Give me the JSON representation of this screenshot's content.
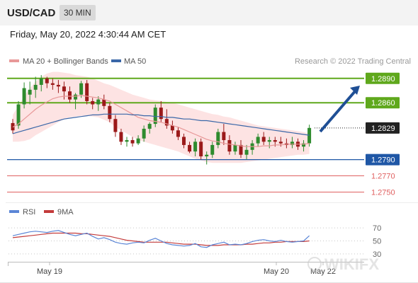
{
  "header": {
    "symbol": "USD/CAD",
    "timeframe": "30 MIN",
    "datetime": "Friday, May 20, 2022 4:30:44 AM CET"
  },
  "legend": {
    "ma20_bb": "MA 20 + Bollinger Bands",
    "ma50": "MA 50",
    "credit": "Research © 2022 Trading Central",
    "rsi": "RSI",
    "ma9": "9MA"
  },
  "watermark": "WIKIFX",
  "colors": {
    "up": "#2e8b2e",
    "down": "#9b1a1a",
    "resistance": "#5fa81c",
    "support": "#1f57a6",
    "minor_support": "#e06060",
    "bollinger_fill": "#fde3e3",
    "ma20": "#e89898",
    "ma50": "#3a67a8",
    "rsi": "#5b86d6",
    "rsi_ma": "#c33b3b",
    "arrow": "#1f4f95"
  },
  "chart_data": [
    {
      "type": "candlestick",
      "x_labels": [
        "May 19",
        "May 20",
        "May 22"
      ],
      "ylim": [
        1.274,
        1.2902
      ],
      "levels": [
        {
          "value": 1.289,
          "label": "1.2890",
          "kind": "resistance"
        },
        {
          "value": 1.286,
          "label": "1.2860",
          "kind": "resistance"
        },
        {
          "value": 1.2829,
          "label": "1.2829",
          "kind": "last"
        },
        {
          "value": 1.279,
          "label": "1.2790",
          "kind": "support"
        },
        {
          "value": 1.277,
          "label": "1.2770",
          "kind": "minor"
        },
        {
          "value": 1.275,
          "label": "1.2750",
          "kind": "minor"
        }
      ],
      "ohlc": [
        [
          1.2835,
          1.284,
          1.2822,
          1.2826
        ],
        [
          1.2832,
          1.2862,
          1.2828,
          1.2858
        ],
        [
          1.2858,
          1.2885,
          1.2853,
          1.2878
        ],
        [
          1.287,
          1.2886,
          1.2858,
          1.2876
        ],
        [
          1.2876,
          1.2892,
          1.2866,
          1.2882
        ],
        [
          1.2882,
          1.2894,
          1.2874,
          1.289
        ],
        [
          1.289,
          1.2892,
          1.2878,
          1.2884
        ],
        [
          1.2884,
          1.289,
          1.2876,
          1.2882
        ],
        [
          1.2882,
          1.2888,
          1.2872,
          1.288
        ],
        [
          1.288,
          1.2886,
          1.2864,
          1.2874
        ],
        [
          1.2874,
          1.288,
          1.286,
          1.2864
        ],
        [
          1.2864,
          1.2872,
          1.2852,
          1.287
        ],
        [
          1.287,
          1.2887,
          1.2866,
          1.2884
        ],
        [
          1.2884,
          1.2888,
          1.2858,
          1.2862
        ],
        [
          1.2862,
          1.2866,
          1.2852,
          1.2858
        ],
        [
          1.2858,
          1.2868,
          1.285,
          1.2864
        ],
        [
          1.2864,
          1.287,
          1.2852,
          1.2856
        ],
        [
          1.2856,
          1.286,
          1.2836,
          1.284
        ],
        [
          1.284,
          1.2845,
          1.2818,
          1.2824
        ],
        [
          1.2824,
          1.2828,
          1.2808,
          1.2812
        ],
        [
          1.2812,
          1.2818,
          1.2806,
          1.2814
        ],
        [
          1.2814,
          1.2818,
          1.2806,
          1.281
        ],
        [
          1.281,
          1.282,
          1.2808,
          1.2816
        ],
        [
          1.2816,
          1.2832,
          1.2812,
          1.2828
        ],
        [
          1.2828,
          1.2836,
          1.2822,
          1.2834
        ],
        [
          1.2834,
          1.2858,
          1.283,
          1.2854
        ],
        [
          1.2854,
          1.2862,
          1.2836,
          1.284
        ],
        [
          1.284,
          1.2852,
          1.2828,
          1.2832
        ],
        [
          1.2832,
          1.2838,
          1.2822,
          1.2826
        ],
        [
          1.2826,
          1.283,
          1.2814,
          1.2818
        ],
        [
          1.2818,
          1.2822,
          1.2804,
          1.2808
        ],
        [
          1.2808,
          1.2812,
          1.2798,
          1.28
        ],
        [
          1.28,
          1.2816,
          1.2794,
          1.2812
        ],
        [
          1.2812,
          1.2816,
          1.279,
          1.2794
        ],
        [
          1.2794,
          1.28,
          1.2784,
          1.2796
        ],
        [
          1.2796,
          1.2812,
          1.2792,
          1.2808
        ],
        [
          1.2808,
          1.2828,
          1.2804,
          1.2824
        ],
        [
          1.2824,
          1.2834,
          1.2808,
          1.2814
        ],
        [
          1.2814,
          1.282,
          1.2796,
          1.28
        ],
        [
          1.28,
          1.2812,
          1.2796,
          1.2808
        ],
        [
          1.2808,
          1.2814,
          1.2792,
          1.2796
        ],
        [
          1.2796,
          1.2808,
          1.279,
          1.2802
        ],
        [
          1.2802,
          1.2814,
          1.2796,
          1.281
        ],
        [
          1.281,
          1.2822,
          1.2806,
          1.2818
        ],
        [
          1.2818,
          1.2824,
          1.2808,
          1.2812
        ],
        [
          1.2812,
          1.2818,
          1.2804,
          1.2814
        ],
        [
          1.2814,
          1.2818,
          1.2806,
          1.2812
        ],
        [
          1.2812,
          1.2818,
          1.2806,
          1.281
        ],
        [
          1.281,
          1.2816,
          1.2804,
          1.2808
        ],
        [
          1.2808,
          1.2818,
          1.2804,
          1.2812
        ],
        [
          1.2812,
          1.2816,
          1.2802,
          1.2806
        ],
        [
          1.2806,
          1.2814,
          1.28,
          1.281
        ],
        [
          1.281,
          1.2833,
          1.2806,
          1.2829
        ]
      ],
      "ma20": [
        1.283,
        1.2834,
        1.284,
        1.2846,
        1.2852,
        1.2857,
        1.2861,
        1.2865,
        1.2867,
        1.2868,
        1.2868,
        1.2868,
        1.2869,
        1.2868,
        1.2867,
        1.2866,
        1.2864,
        1.2862,
        1.2858,
        1.2854,
        1.285,
        1.2846,
        1.2842,
        1.284,
        1.2838,
        1.2837,
        1.2836,
        1.2834,
        1.2832,
        1.283,
        1.2827,
        1.2824,
        1.2821,
        1.2818,
        1.2815,
        1.2813,
        1.2812,
        1.281,
        1.2809,
        1.2808,
        1.2807,
        1.2806,
        1.2806,
        1.2806,
        1.2807,
        1.2807,
        1.2808,
        1.2808,
        1.2809,
        1.2809,
        1.2809,
        1.2809,
        1.281
      ],
      "ma50": [
        1.2822,
        1.2824,
        1.2826,
        1.2828,
        1.283,
        1.2832,
        1.2834,
        1.2836,
        1.2838,
        1.284,
        1.2841,
        1.2842,
        1.2843,
        1.2844,
        1.2845,
        1.2845,
        1.2846,
        1.2846,
        1.2846,
        1.2846,
        1.2846,
        1.2845,
        1.2845,
        1.2844,
        1.2844,
        1.2843,
        1.2843,
        1.2842,
        1.2842,
        1.2841,
        1.284,
        1.284,
        1.2839,
        1.2838,
        1.2838,
        1.2837,
        1.2836,
        1.2835,
        1.2834,
        1.2833,
        1.2832,
        1.2831,
        1.283,
        1.2829,
        1.2828,
        1.2827,
        1.2826,
        1.2825,
        1.2824,
        1.2823,
        1.2822,
        1.2821,
        1.282
      ],
      "bb_upper": [
        1.2845,
        1.2856,
        1.2868,
        1.2878,
        1.2886,
        1.2892,
        1.2896,
        1.2898,
        1.2898,
        1.2897,
        1.2896,
        1.2894,
        1.2893,
        1.2892,
        1.289,
        1.2887,
        1.2884,
        1.2882,
        1.2879,
        1.2876,
        1.2873,
        1.287,
        1.2868,
        1.2866,
        1.2864,
        1.2863,
        1.2862,
        1.2861,
        1.286,
        1.2858,
        1.2856,
        1.2854,
        1.2852,
        1.285,
        1.2848,
        1.2846,
        1.2845,
        1.2843,
        1.2842,
        1.284,
        1.2838,
        1.2836,
        1.2834,
        1.2832,
        1.2831,
        1.283,
        1.2829,
        1.2828,
        1.2827,
        1.2826,
        1.2825,
        1.2824,
        1.2822
      ],
      "bb_lower": [
        1.2812,
        1.2812,
        1.2813,
        1.2815,
        1.282,
        1.2824,
        1.2828,
        1.2832,
        1.2836,
        1.284,
        1.2842,
        1.2843,
        1.2844,
        1.2844,
        1.2843,
        1.2842,
        1.2839,
        1.2836,
        1.283,
        1.2826,
        1.2822,
        1.2818,
        1.2814,
        1.2812,
        1.281,
        1.2808,
        1.2806,
        1.2804,
        1.2802,
        1.28,
        1.2797,
        1.2794,
        1.2791,
        1.2789,
        1.2787,
        1.2786,
        1.2786,
        1.2786,
        1.2786,
        1.2786,
        1.2786,
        1.2787,
        1.2788,
        1.2789,
        1.279,
        1.2791,
        1.2792,
        1.2793,
        1.2794,
        1.2795,
        1.2796,
        1.2796,
        1.2797
      ]
    },
    {
      "type": "line",
      "ylim": [
        20,
        80
      ],
      "ticks": [
        70,
        50,
        30
      ],
      "series": [
        {
          "name": "RSI",
          "values": [
            58,
            60,
            62,
            64,
            65,
            64,
            63,
            65,
            66,
            63,
            60,
            58,
            60,
            62,
            57,
            53,
            55,
            52,
            48,
            46,
            45,
            47,
            48,
            47,
            51,
            54,
            50,
            46,
            44,
            43,
            42,
            43,
            46,
            41,
            40,
            44,
            46,
            48,
            44,
            45,
            44,
            46,
            49,
            51,
            52,
            50,
            49,
            51,
            49,
            48,
            49,
            50,
            58
          ]
        },
        {
          "name": "9MA",
          "values": [
            55,
            56,
            57,
            58,
            59,
            60,
            61,
            62,
            62,
            62,
            62,
            62,
            61,
            61,
            60,
            59,
            58,
            57,
            55,
            53,
            51,
            50,
            49,
            48,
            48,
            48,
            48,
            48,
            47,
            46,
            45,
            45,
            45,
            44,
            43,
            43,
            43,
            44,
            44,
            44,
            44,
            45,
            45,
            46,
            47,
            47,
            48,
            48,
            49,
            49,
            49,
            49,
            50
          ]
        }
      ]
    }
  ]
}
